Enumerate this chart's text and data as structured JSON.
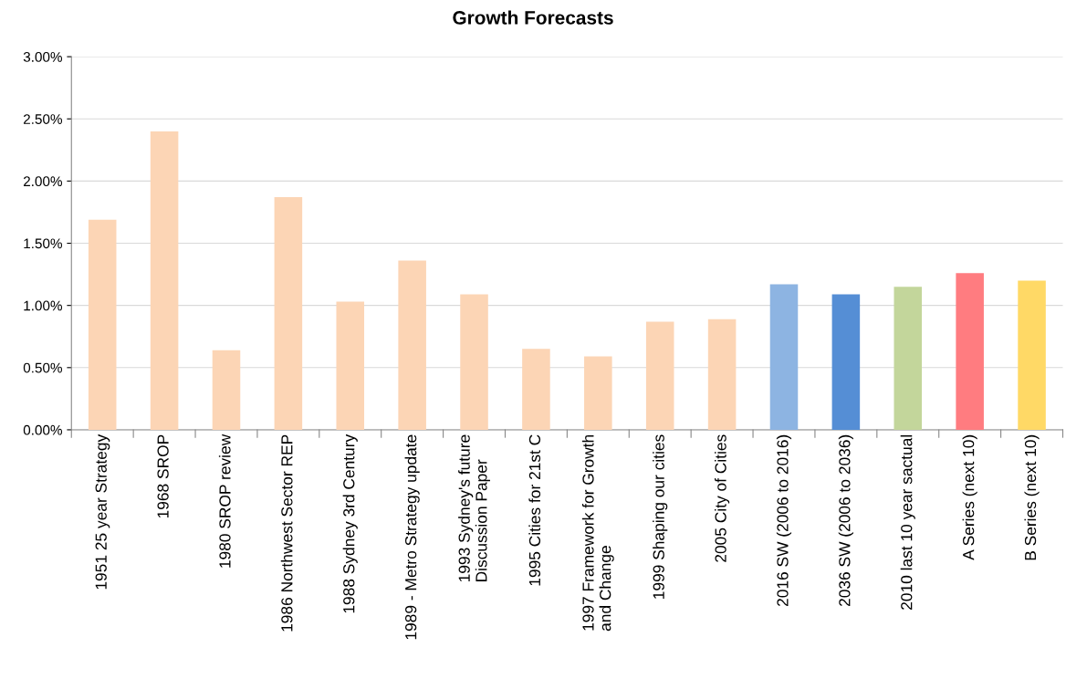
{
  "chart_data": {
    "type": "bar",
    "title": "Growth Forecasts",
    "categories": [
      "1951 25 year Strategy",
      "1968 SROP",
      "1980 SROP review",
      "1986 Northwest Sector REP",
      "1988 Sydney 3rd Century",
      "1989 - Metro Strategy update",
      "1993 Sydney's future\nDiscussion Paper",
      "1995 Cities for 21st C",
      "1997 Framework for Growth\nand Change",
      "1999 Shaping our cities",
      "2005 City of Cities",
      "2016 SW (2006 to 2016)",
      "2036 SW (2006 to 2036)",
      "2010 last 10 year sactual",
      "A Series (next 10)",
      "B Series (next 10)"
    ],
    "values": [
      1.69,
      2.4,
      0.64,
      1.87,
      1.03,
      1.36,
      1.09,
      0.65,
      0.59,
      0.87,
      0.89,
      1.17,
      1.09,
      1.15,
      1.26,
      1.2
    ],
    "colors": [
      "#fcd5b5",
      "#fcd5b5",
      "#fcd5b5",
      "#fcd5b5",
      "#fcd5b5",
      "#fcd5b5",
      "#fcd5b5",
      "#fcd5b5",
      "#fcd5b5",
      "#fcd5b5",
      "#fcd5b5",
      "#8db4e2",
      "#558ed5",
      "#c3d69b",
      "#ff7c80",
      "#ffd966"
    ],
    "ylim": [
      0,
      3
    ],
    "yticks": [
      {
        "value": 0,
        "label": "0.00%"
      },
      {
        "value": 0.5,
        "label": "0.50%"
      },
      {
        "value": 1,
        "label": "1.00%"
      },
      {
        "value": 1.5,
        "label": "1.50%"
      },
      {
        "value": 2,
        "label": "2.00%"
      },
      {
        "value": 2.5,
        "label": "2.50%"
      },
      {
        "value": 3,
        "label": "3.00%"
      }
    ],
    "grid": "y",
    "legend": false
  }
}
